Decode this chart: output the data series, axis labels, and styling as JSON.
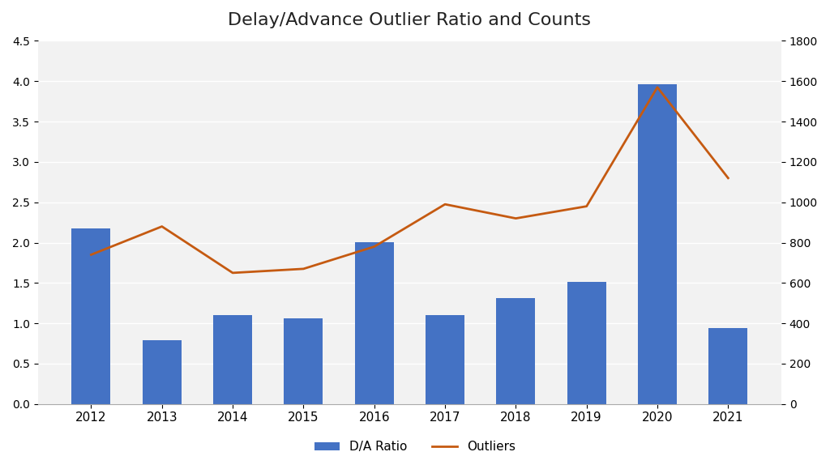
{
  "years": [
    2012,
    2013,
    2014,
    2015,
    2016,
    2017,
    2018,
    2019,
    2020,
    2021
  ],
  "da_ratio": [
    2.18,
    0.79,
    1.1,
    1.06,
    2.01,
    1.1,
    1.31,
    1.51,
    3.96,
    0.94
  ],
  "outliers": [
    740,
    880,
    650,
    670,
    780,
    990,
    920,
    980,
    1570,
    1120
  ],
  "bar_color": "#4472C4",
  "line_color": "#C55A11",
  "title": "Delay/Advance Outlier Ratio and Counts",
  "title_fontsize": 16,
  "legend_bar_label": "D/A Ratio",
  "legend_line_label": "Outliers",
  "left_ylim": [
    0,
    4.5
  ],
  "right_ylim": [
    0,
    1800
  ],
  "left_yticks": [
    0.0,
    0.5,
    1.0,
    1.5,
    2.0,
    2.5,
    3.0,
    3.5,
    4.0,
    4.5
  ],
  "right_yticks": [
    0,
    200,
    400,
    600,
    800,
    1000,
    1200,
    1400,
    1600,
    1800
  ],
  "background_color": "#F2F2F2",
  "figure_background": "#FFFFFF",
  "grid_color": "#FFFFFF",
  "bar_width": 0.55
}
